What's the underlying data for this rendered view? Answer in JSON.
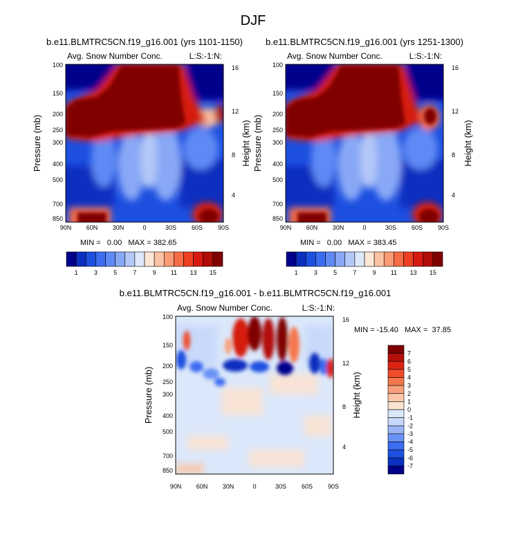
{
  "title": "DJF",
  "colors": {
    "scale": [
      "#00008b",
      "#0b2fbf",
      "#1d4fe0",
      "#3c6cf0",
      "#5f8af5",
      "#88a8f6",
      "#b4c8f7",
      "#dde8fa",
      "#fde6d6",
      "#fbc3a3",
      "#f99b75",
      "#f56c46",
      "#ee3f22",
      "#d61a10",
      "#b00c08",
      "#800000"
    ],
    "diff": [
      "#00008b",
      "#0b2fbf",
      "#1d4fe0",
      "#3c6cf0",
      "#6a92f5",
      "#9ab4f7",
      "#c7d8fa",
      "#dbe8fb",
      "#fce3d2",
      "#fbc7a8",
      "#f9a07b",
      "#f6774e",
      "#f04b2a",
      "#dc2414",
      "#b40f0a",
      "#800000"
    ]
  },
  "chart_data": [
    {
      "type": "heatmap",
      "panel": "top-left",
      "title": "b.e11.BLMTRC5CN.f19_g16.001 (yrs 1101-1150)",
      "left_label": "Avg. Snow Number Conc.",
      "right_label": "L:S:-1:N:",
      "xlabel": "",
      "ylabel": "Pressure (mb)",
      "ylabel_right": "Height (km)",
      "x_ticks": [
        "90N",
        "60N",
        "30N",
        "0",
        "30S",
        "60S",
        "90S"
      ],
      "y_ticks": [
        "100",
        "150",
        "200",
        "250",
        "300",
        "400",
        "500",
        "700",
        "850"
      ],
      "y_ticks_right": [
        "16",
        "12",
        "8",
        "4"
      ],
      "min_max": "MIN =   0.00   MAX = 382.65",
      "colorbar_labels": [
        "1",
        "3",
        "5",
        "7",
        "9",
        "11",
        "13",
        "15"
      ]
    },
    {
      "type": "heatmap",
      "panel": "top-right",
      "title": "b.e11.BLMTRC5CN.f19_g16.001 (yrs 1251-1300)",
      "left_label": "Avg. Snow Number Conc.",
      "right_label": "L:S:-1:N:",
      "xlabel": "",
      "ylabel": "Pressure (mb)",
      "ylabel_right": "Height (km)",
      "x_ticks": [
        "90N",
        "60N",
        "30N",
        "0",
        "30S",
        "60S",
        "90S"
      ],
      "y_ticks": [
        "100",
        "150",
        "200",
        "250",
        "300",
        "400",
        "500",
        "700",
        "850"
      ],
      "y_ticks_right": [
        "16",
        "12",
        "8",
        "4"
      ],
      "min_max": "MIN =   0.00   MAX = 383.45",
      "colorbar_labels": [
        "1",
        "3",
        "5",
        "7",
        "9",
        "11",
        "13",
        "15"
      ]
    },
    {
      "type": "heatmap",
      "panel": "bottom",
      "title": "b.e11.BLMTRC5CN.f19_g16.001 - b.e11.BLMTRC5CN.f19_g16.001",
      "left_label": "Avg. Snow Number Conc.",
      "right_label": "L:S:-1:N:",
      "xlabel": "",
      "ylabel": "Pressure (mb)",
      "ylabel_right": "Height (km)",
      "x_ticks": [
        "90N",
        "60N",
        "30N",
        "0",
        "30S",
        "60S",
        "90S"
      ],
      "y_ticks": [
        "100",
        "150",
        "200",
        "250",
        "300",
        "400",
        "500",
        "700",
        "850"
      ],
      "y_ticks_right": [
        "16",
        "12",
        "8",
        "4"
      ],
      "min_max": "MIN = -15.40   MAX =  37.85",
      "colorbar_labels": [
        "7",
        "6",
        "5",
        "4",
        "3",
        "2",
        "1",
        "0",
        "-1",
        "-2",
        "-3",
        "-4",
        "-5",
        "-6",
        "-7"
      ]
    }
  ]
}
